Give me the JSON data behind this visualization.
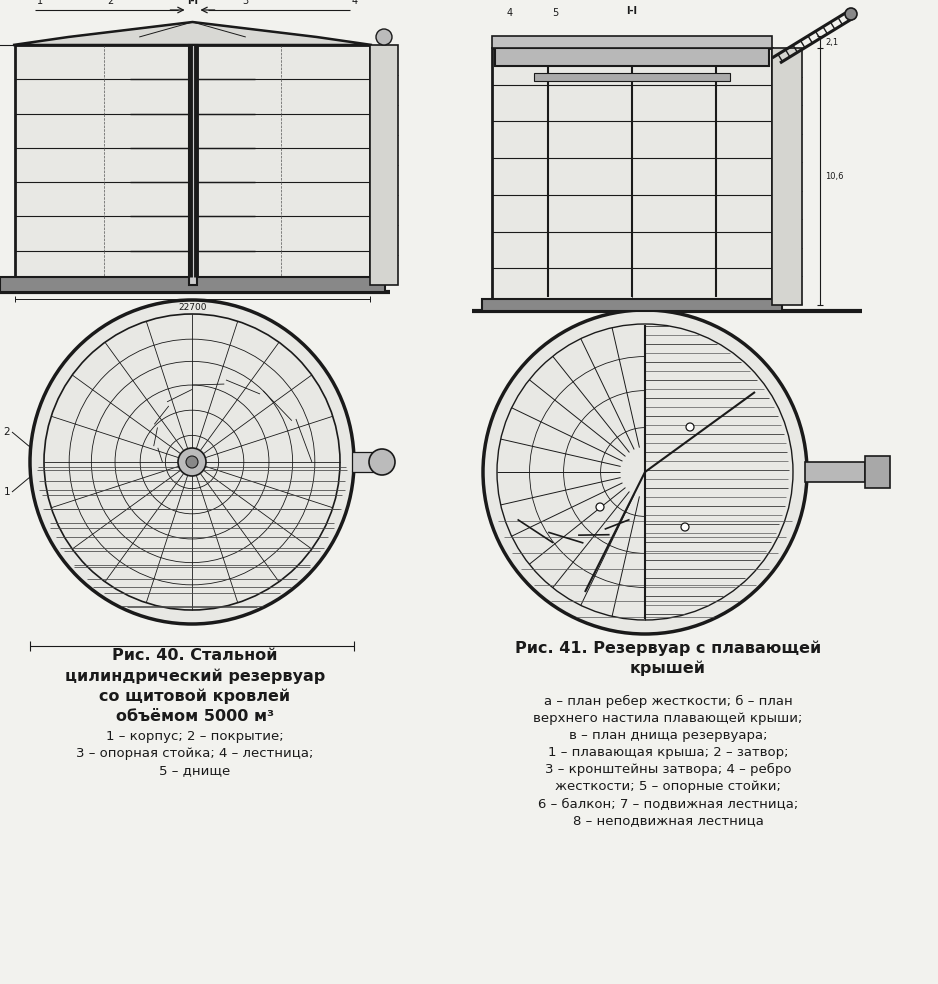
{
  "bg_color": "#f2f2ee",
  "title_left": "Рис. 40. Стальной\nцилиндрический резервуар\nсо щитовой кровлей\nобъёмом 5000 м³",
  "caption_left": "1 – корпус; 2 – покрытие;\n3 – опорная стойка; 4 – лестница;\n5 – днище",
  "title_right": "Рис. 41. Резервуар с плавающей\nкрышей",
  "caption_right": "а – план ребер жесткости; б – план\nверхнего настила плавающей крыши;\nв – план днища резервуара;\n1 – плавающая крыша; 2 – затвор;\n3 – кронштейны затвора; 4 – ребро\nжесткости; 5 – опорные стойки;\n6 – балкон; 7 – подвижная лестница;\n8 – неподвижная лестница",
  "lc": "#1a1a1a"
}
